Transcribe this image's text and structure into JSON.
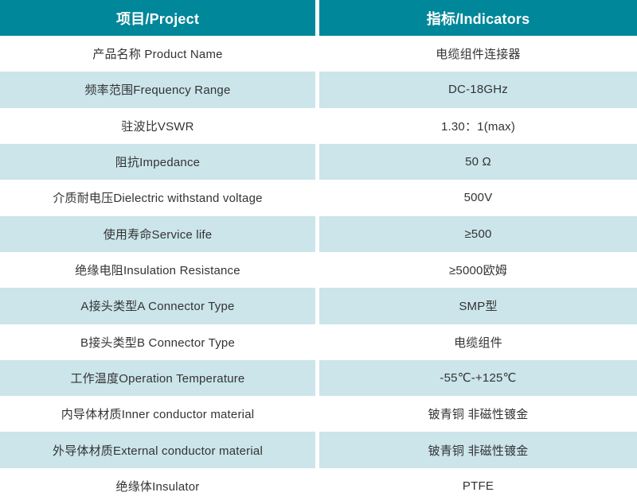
{
  "colors": {
    "header_bg": "#008799",
    "stripe_bg": "#CBE5EA",
    "header_text": "#FFFFFF",
    "body_text": "#333333"
  },
  "table": {
    "header": {
      "project_label": "项目/Project",
      "indicators_label": "指标/Indicators"
    },
    "rows": [
      {
        "project": "产品名称 Product Name",
        "indicator": "电缆组件连接器"
      },
      {
        "project": "频率范围Frequency Range",
        "indicator": "DC-18GHz"
      },
      {
        "project": "驻波比VSWR",
        "indicator": "1.30：1(max)"
      },
      {
        "project": "阻抗Impedance",
        "indicator": "50 Ω"
      },
      {
        "project": "介质耐电压Dielectric withstand voltage",
        "indicator": "500V"
      },
      {
        "project": "使用寿命Service life",
        "indicator": "≥500"
      },
      {
        "project": "绝缘电阻Insulation Resistance",
        "indicator": "≥5000欧姆"
      },
      {
        "project": "A接头类型A Connector Type",
        "indicator": "SMP型"
      },
      {
        "project": "B接头类型B Connector Type",
        "indicator": "电缆组件"
      },
      {
        "project": "工作温度Operation Temperature",
        "indicator": "-55℃-+125℃"
      },
      {
        "project": "内导体材质Inner conductor material",
        "indicator": "铍青铜 非磁性镀金"
      },
      {
        "project": "外导体材质External conductor material",
        "indicator": "铍青铜 非磁性镀金"
      },
      {
        "project": "绝缘体Insulator",
        "indicator": "PTFE"
      }
    ]
  }
}
